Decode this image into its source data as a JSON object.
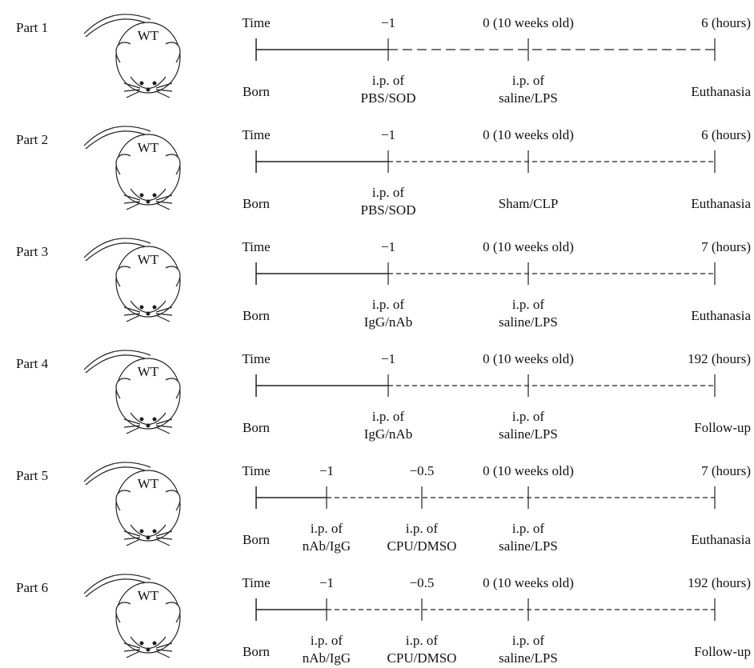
{
  "parts": [
    {
      "label": "Part 1",
      "mouse": "WT",
      "time": "Time",
      "start": "Born",
      "events": [
        {
          "top": "−1",
          "bottom": [
            "i.p. of",
            "PBS/SOD"
          ]
        },
        {
          "top": "0 (10 weeks old)",
          "bottom": [
            "i.p. of",
            "saline/LPS"
          ]
        },
        {
          "top": "6 (hours)",
          "bottom": [
            "Euthanasia"
          ]
        }
      ]
    },
    {
      "label": "Part 2",
      "mouse": "WT",
      "time": "Time",
      "start": "Born",
      "events": [
        {
          "top": "−1",
          "bottom": [
            "i.p. of",
            "PBS/SOD"
          ]
        },
        {
          "top": "0 (10 weeks old)",
          "bottom": [
            "Sham/CLP"
          ]
        },
        {
          "top": "6 (hours)",
          "bottom": [
            "Euthanasia"
          ]
        }
      ]
    },
    {
      "label": "Part 3",
      "mouse": "WT",
      "time": "Time",
      "start": "Born",
      "events": [
        {
          "top": "−1",
          "bottom": [
            "i.p. of",
            "IgG/nAb"
          ]
        },
        {
          "top": "0 (10 weeks old)",
          "bottom": [
            "i.p. of",
            "saline/LPS"
          ]
        },
        {
          "top": "7 (hours)",
          "bottom": [
            "Euthanasia"
          ]
        }
      ]
    },
    {
      "label": "Part 4",
      "mouse": "WT",
      "time": "Time",
      "start": "Born",
      "events": [
        {
          "top": "−1",
          "bottom": [
            "i.p. of",
            "IgG/nAb"
          ]
        },
        {
          "top": "0 (10 weeks old)",
          "bottom": [
            "i.p. of",
            "saline/LPS"
          ]
        },
        {
          "top": "192 (hours)",
          "bottom": [
            "Follow-up"
          ]
        }
      ]
    },
    {
      "label": "Part 5",
      "mouse": "WT",
      "time": "Time",
      "start": "Born",
      "events": [
        {
          "top": "−1",
          "bottom": [
            "i.p. of",
            "nAb/IgG"
          ]
        },
        {
          "top": "−0.5",
          "bottom": [
            "i.p. of",
            "CPU/DMSO"
          ]
        },
        {
          "top": "0 (10 weeks old)",
          "bottom": [
            "i.p. of",
            "saline/LPS"
          ]
        },
        {
          "top": "7 (hours)",
          "bottom": [
            "Euthanasia"
          ]
        }
      ]
    },
    {
      "label": "Part 6",
      "mouse": "WT",
      "time": "Time",
      "start": "Born",
      "events": [
        {
          "top": "−1",
          "bottom": [
            "i.p. of",
            "nAb/IgG"
          ]
        },
        {
          "top": "−0.5",
          "bottom": [
            "i.p. of",
            "CPU/DMSO"
          ]
        },
        {
          "top": "0 (10 weeks old)",
          "bottom": [
            "i.p. of",
            "saline/LPS"
          ]
        },
        {
          "top": "192 (hours)",
          "bottom": [
            "Follow-up"
          ]
        }
      ]
    }
  ]
}
